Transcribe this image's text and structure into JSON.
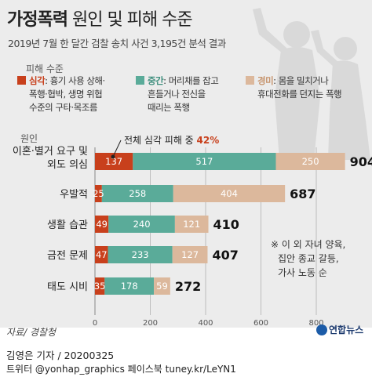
{
  "title": "가정폭력",
  "title_sub": "원인 및 피해 수준",
  "subtitle": "2019년 7월 한 달간 검찰 송치 사건 3,195건 분석 결과",
  "severity_header": "피해 수준",
  "severity": [
    {
      "name": "심각",
      "desc": ": 흉기 사용 상해·",
      "lines": [
        "폭행·협박, 생명 위협",
        "수준의 구타·목조름"
      ],
      "color": "#c8401c"
    },
    {
      "name": "중간",
      "desc": ": 머리채를 잡고",
      "lines": [
        "흔들거나 전신을",
        "때리는 폭행"
      ],
      "color": "#5aab99"
    },
    {
      "name": "경미",
      "desc": ": 몸을 밀치거나",
      "lines": [
        "휴대전화를 던지는 폭행"
      ],
      "color": "#dcb89c"
    }
  ],
  "cause_header": "원인",
  "annotation": {
    "text": "전체 심각 피해 중 ",
    "highlight": "42%"
  },
  "note": [
    "※ 이 외 자녀 양육,",
    "집안 종교 갈등,",
    "가사 노동 순"
  ],
  "source": "자료/ 경찰청",
  "credit": "김영은 기자 / 20200325",
  "social": "트위터 @yonhap_graphics  페이스북 tuney.kr/LeYN1",
  "logo_text": "연합뉴스",
  "colors": {
    "severe": "#c8401c",
    "medium": "#5aab99",
    "minor": "#dcb89c"
  },
  "chart_data": {
    "type": "bar",
    "orientation": "horizontal",
    "stacked": true,
    "categories": [
      "이혼·별거 요구 및 외도 의심",
      "우발적",
      "생활 습관",
      "금전 문제",
      "태도 시비"
    ],
    "series": [
      {
        "name": "심각",
        "values": [
          137,
          25,
          49,
          47,
          35
        ]
      },
      {
        "name": "중간",
        "values": [
          517,
          258,
          240,
          233,
          178
        ]
      },
      {
        "name": "경미",
        "values": [
          250,
          404,
          121,
          127,
          59
        ]
      }
    ],
    "totals": [
      "904건",
      "687",
      "410",
      "407",
      "272"
    ],
    "xlim": [
      0,
      1000
    ],
    "xticks": [
      "0",
      "200",
      "400",
      "600",
      "800"
    ],
    "grid": true
  }
}
